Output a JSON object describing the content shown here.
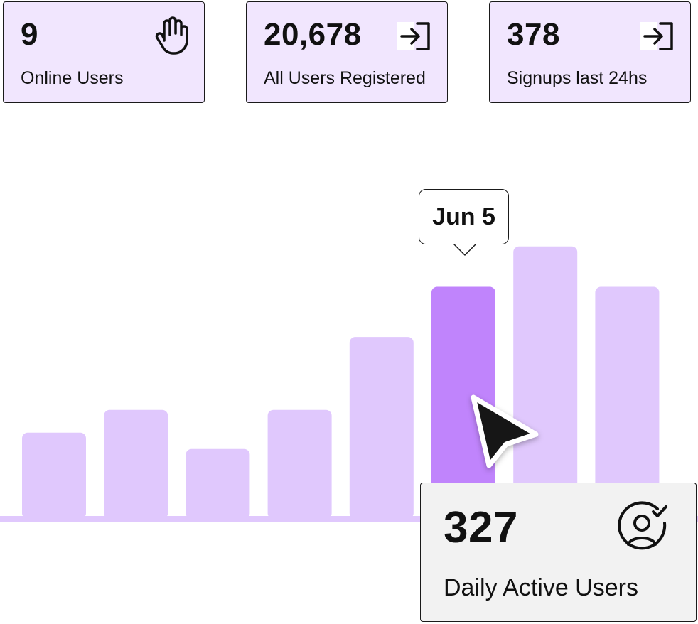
{
  "stats": [
    {
      "value": "9",
      "label": "Online Users",
      "icon": "hand-icon"
    },
    {
      "value": "20,678",
      "label": "All Users Registered",
      "icon": "sign-in-icon"
    },
    {
      "value": "378",
      "label": "Signups last 24hs",
      "icon": "sign-in-icon"
    }
  ],
  "tooltip": {
    "label": "Jun 5"
  },
  "dau": {
    "value": "327",
    "label": "Daily Active Users",
    "icon": "user-check-icon"
  },
  "colors": {
    "card_bg": "#f1e6fe",
    "bar": "#e0c8fd",
    "bar_active": "#c084fc",
    "border": "#1a1a1a",
    "dau_bg": "#f2f2f2"
  },
  "chart_data": {
    "type": "bar",
    "values": [
      130,
      165,
      105,
      165,
      277,
      354,
      416,
      354
    ],
    "highlight_index": 5,
    "ylim": [
      0,
      480
    ]
  }
}
